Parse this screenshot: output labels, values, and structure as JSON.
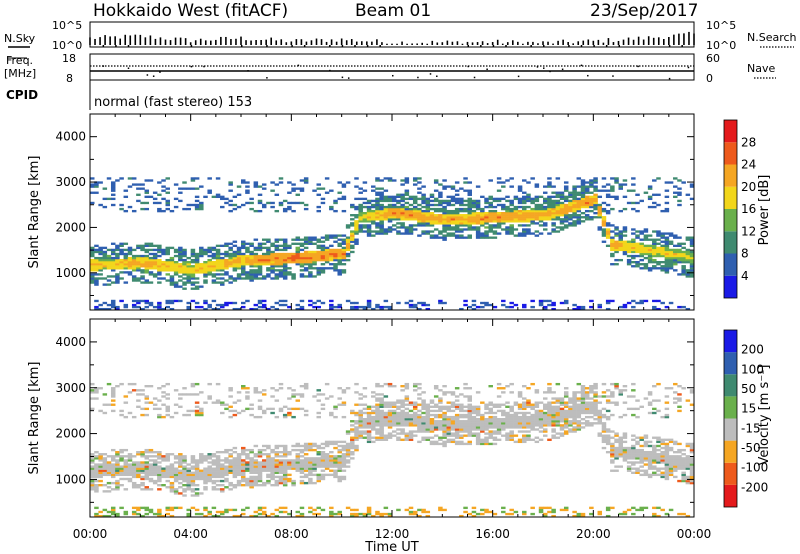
{
  "header": {
    "station": "Hokkaido West (fitACF)",
    "beam": "Beam 01",
    "date": "23/Sep/2017"
  },
  "top_panels": {
    "nsky_label": "N.Sky",
    "nsearch_label": "N.Search",
    "noise_ticks": [
      "10^5",
      "10^0"
    ],
    "freq_label_1": "Freq.",
    "freq_label_2": "[MHz]",
    "freq_ticks": [
      "18",
      "8"
    ],
    "nave_label": "Nave",
    "nave_ticks": [
      "60",
      "0"
    ],
    "cpid_label": "CPID",
    "cpid_text": "normal (fast stereo) 153"
  },
  "x_axis": {
    "label": "Time UT",
    "ticks": [
      "00:00",
      "04:00",
      "08:00",
      "12:00",
      "16:00",
      "20:00",
      "00:00"
    ]
  },
  "power_panel": {
    "ylabel": "Slant Range [km]",
    "yticks": [
      "1000",
      "2000",
      "3000",
      "4000"
    ],
    "colorbar_label": "Power [dB]",
    "colorbar_ticks": [
      "4",
      "8",
      "12",
      "16",
      "20",
      "24",
      "28"
    ],
    "colors": [
      "#1a1ae6",
      "#2f5fb0",
      "#3f8a70",
      "#6ab04c",
      "#f2d61b",
      "#f5a623",
      "#ee5a1c",
      "#e41a1c"
    ]
  },
  "velocity_panel": {
    "ylabel": "Slant Range [km]",
    "yticks": [
      "1000",
      "2000",
      "3000",
      "4000"
    ],
    "colorbar_label": "Velocity [m s⁻¹]",
    "colorbar_ticks": [
      "200",
      "100",
      "50",
      "15",
      "-15",
      "-50",
      "-100",
      "-200"
    ],
    "colors": [
      "#1a1ae6",
      "#2f5fb0",
      "#3f8a70",
      "#6ab04c",
      "#bdbdbd",
      "#f5a623",
      "#ee5a1c",
      "#e41a1c"
    ]
  },
  "chart_data": [
    {
      "type": "heatmap",
      "title": "Hokkaido West (fitACF) Beam 01 23/Sep/2017",
      "xlabel": "Time UT",
      "ylabel": "Slant Range [km]",
      "xlim": [
        "00:00",
        "24:00"
      ],
      "ylim": [
        180,
        4500
      ],
      "colorbar": "Power [dB]",
      "clim": [
        0,
        32
      ],
      "main_scatter_band": {
        "time": [
          "00:00",
          "02:00",
          "04:00",
          "06:00",
          "08:00",
          "10:00",
          "10:40",
          "12:00",
          "14:00",
          "16:00",
          "18:00",
          "20:00",
          "20:40",
          "22:00",
          "24:00"
        ],
        "range_km": [
          1150,
          1200,
          1050,
          1250,
          1300,
          1400,
          2200,
          2300,
          2150,
          2200,
          2250,
          2600,
          1600,
          1500,
          1300
        ],
        "power_db": [
          20,
          22,
          20,
          22,
          26,
          24,
          18,
          24,
          22,
          24,
          22,
          24,
          22,
          20,
          18
        ]
      }
    },
    {
      "type": "heatmap",
      "xlabel": "Time UT",
      "ylabel": "Slant Range [km]",
      "xlim": [
        "00:00",
        "24:00"
      ],
      "ylim": [
        180,
        4500
      ],
      "colorbar": "Velocity [m s⁻¹]",
      "clim": [
        -200,
        200
      ],
      "dominant_velocity_ms": "-15 to 15",
      "ground_scatter_band": {
        "time": [
          "00:00",
          "04:00",
          "08:00",
          "10:40",
          "12:00",
          "16:00",
          "20:00",
          "20:40",
          "24:00"
        ],
        "range_km": [
          1200,
          1200,
          1400,
          1500,
          2200,
          2300,
          2500,
          1600,
          1300
        ]
      }
    },
    {
      "type": "line",
      "series": [
        {
          "name": "N.Sky",
          "y_exponent": [
            1.5,
            2.0,
            1.0,
            1.5,
            0.8,
            1.2,
            0.5,
            0.5,
            0.6,
            0.4,
            0.8,
            1.5,
            2.5
          ]
        }
      ],
      "x": [
        "00:00",
        "02:00",
        "04:00",
        "06:00",
        "08:00",
        "10:00",
        "12:00",
        "14:00",
        "16:00",
        "18:00",
        "20:00",
        "22:00",
        "24:00"
      ]
    }
  ]
}
